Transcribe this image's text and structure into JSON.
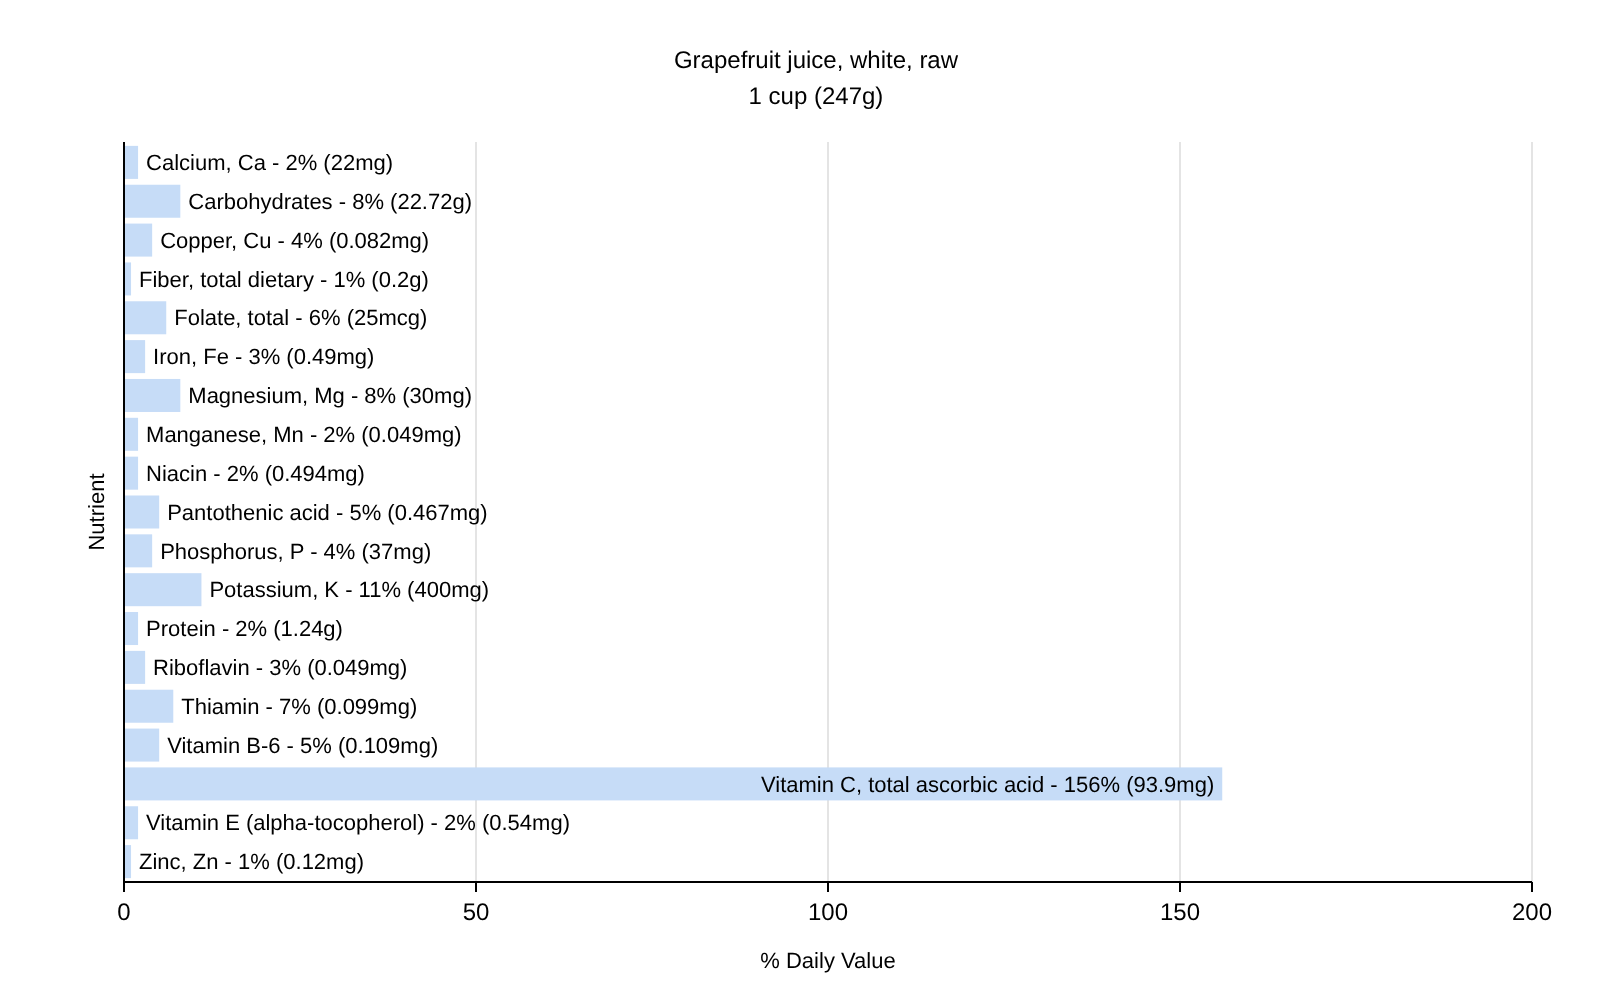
{
  "chart_data": {
    "type": "bar",
    "orientation": "horizontal",
    "title": "Grapefruit juice, white, raw",
    "subtitle": "1 cup (247g)",
    "xlabel": "% Daily Value",
    "ylabel": "Nutrient",
    "categories": [
      "Calcium, Ca - 2% (22mg)",
      "Carbohydrates - 8% (22.72g)",
      "Copper, Cu - 4% (0.082mg)",
      "Fiber, total dietary - 1% (0.2g)",
      "Folate, total - 6% (25mcg)",
      "Iron, Fe - 3% (0.49mg)",
      "Magnesium, Mg - 8% (30mg)",
      "Manganese, Mn - 2% (0.049mg)",
      "Niacin - 2% (0.494mg)",
      "Pantothenic acid - 5% (0.467mg)",
      "Phosphorus, P - 4% (37mg)",
      "Potassium, K - 11% (400mg)",
      "Protein - 2% (1.24g)",
      "Riboflavin - 3% (0.049mg)",
      "Thiamin - 7% (0.099mg)",
      "Vitamin B-6 - 5% (0.109mg)",
      "Vitamin C, total ascorbic acid - 156% (93.9mg)",
      "Vitamin E (alpha-tocopherol) - 2% (0.54mg)",
      "Zinc, Zn - 1% (0.12mg)"
    ],
    "values": [
      2,
      8,
      4,
      1,
      6,
      3,
      8,
      2,
      2,
      5,
      4,
      11,
      2,
      3,
      7,
      5,
      156,
      2,
      1
    ],
    "color": "#c6dcf7",
    "xlim": [
      0,
      200
    ],
    "xticks": [
      0,
      50,
      100,
      150,
      200
    ],
    "grid": "x"
  }
}
